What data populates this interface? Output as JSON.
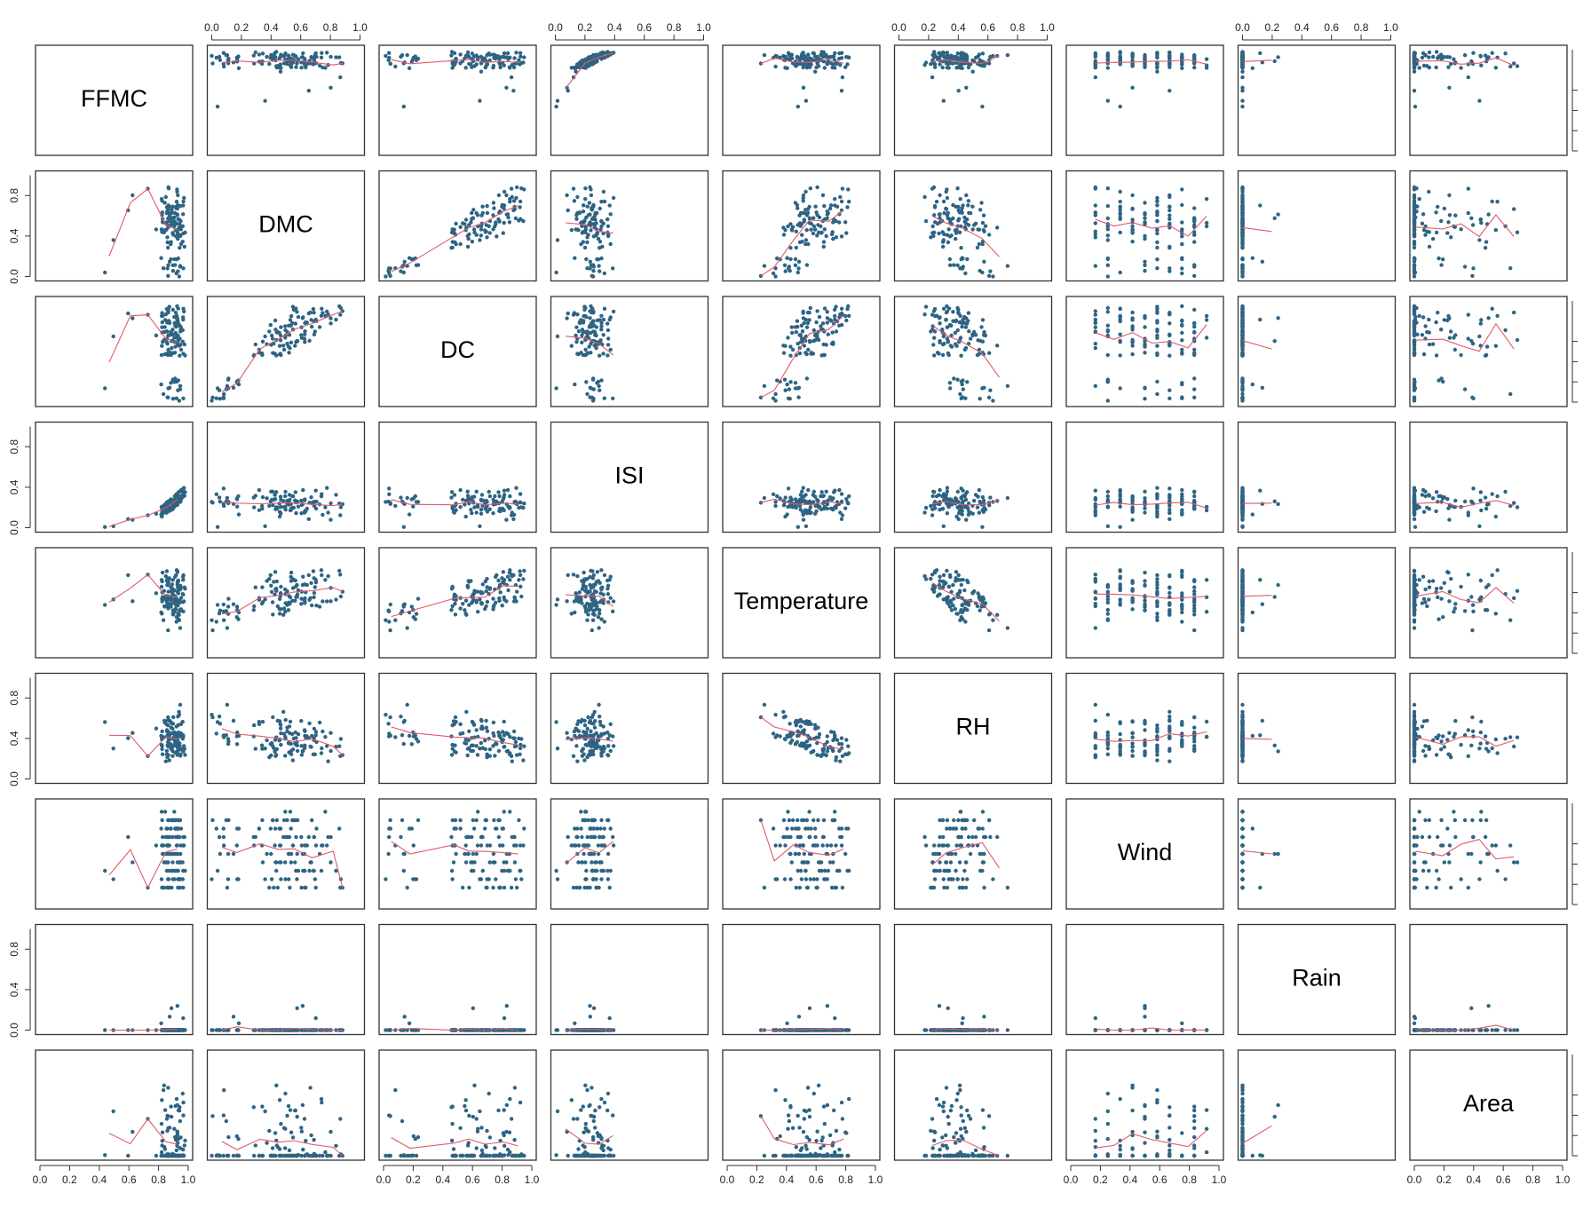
{
  "chart_data": {
    "type": "scatter",
    "subtype": "scatterplot-matrix",
    "variables": [
      "FFMC",
      "DMC",
      "DC",
      "ISI",
      "Temperature",
      "RH",
      "Wind",
      "Rain",
      "Area"
    ],
    "value_range": [
      0,
      1
    ],
    "tick_values": [
      0.0,
      0.2,
      0.4,
      0.6,
      0.8,
      1.0
    ],
    "tick_labels": [
      "0.0",
      "0.2",
      "0.4",
      "0.6",
      "0.8",
      "1.0"
    ],
    "vertical_tick_values": [
      0.0,
      0.4,
      0.8
    ],
    "vertical_tick_labels": [
      "0.0",
      "0.4",
      "0.8"
    ],
    "axes": {
      "top": [
        "DMC",
        "ISI",
        "RH",
        "Rain"
      ],
      "bottom": [
        "FFMC",
        "DC",
        "Temperature",
        "Wind",
        "Area"
      ],
      "left": [
        "DMC",
        "ISI",
        "RH",
        "Rain"
      ],
      "right": [
        "FFMC",
        "DC",
        "Temperature",
        "Wind",
        "Area"
      ]
    },
    "smoother": "loess",
    "colors": {
      "points": "#2e6483",
      "smoother": "#e05a6a",
      "frame": "#333333"
    },
    "point_count_per_panel": 120
  }
}
